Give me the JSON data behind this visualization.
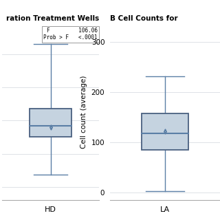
{
  "panel_A": {
    "title": "ration Treatment Wells",
    "xlabel": "HD",
    "box_facecolor": "#c5d3e0",
    "box_edgecolor": "#4a6080",
    "whisker_color": "#5b7fa6",
    "median_color": "#5b7fa6",
    "mean_color": "#5b7fa6",
    "q1": 175,
    "median": 192,
    "q3": 218,
    "mean": 190,
    "whisker_low": 118,
    "whisker_high": 315,
    "ylim": [
      80,
      345
    ],
    "annotation_text": "F         106.06\nProb > F   <.0001",
    "bg_color": "#ffffff"
  },
  "panel_B": {
    "title_prefix": "B",
    "title_main": " Cell Counts for",
    "xlabel": "LA",
    "ylabel": "Cell count (average)",
    "box_facecolor": "#c5d3e0",
    "box_edgecolor": "#4a6080",
    "whisker_color": "#5b7fa6",
    "median_color": "#5b7fa6",
    "mean_color": "#5b7fa6",
    "q1": 85,
    "median": 118,
    "q3": 158,
    "mean": 122,
    "whisker_low": 3,
    "whisker_high": 232,
    "yticks": [
      0,
      100,
      200,
      300
    ],
    "ylim": [
      -15,
      335
    ],
    "bg_color": "#ffffff"
  },
  "figure_bg": "#ffffff",
  "grid_color": "#d8dde3",
  "ann_box_color": "#ffffff",
  "ann_edge_color": "#999999"
}
